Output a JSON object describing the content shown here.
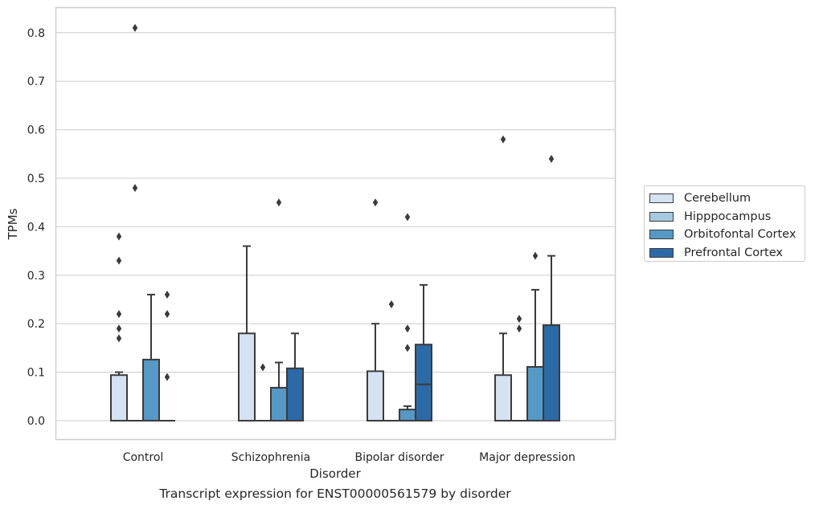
{
  "chart_data": {
    "type": "box",
    "title": "",
    "caption": "Transcript expression for ENST00000561579 by disorder",
    "xlabel": "Disorder",
    "ylabel": "TPMs",
    "ylim": [
      -0.04,
      0.855
    ],
    "yticks": [
      "0.0",
      "0.1",
      "0.2",
      "0.3",
      "0.4",
      "0.5",
      "0.6",
      "0.7",
      "0.8"
    ],
    "ytick_values": [
      0.0,
      0.1,
      0.2,
      0.3,
      0.4,
      0.5,
      0.6,
      0.7,
      0.8
    ],
    "grid": true,
    "legend_position": "right",
    "categories": [
      "Control",
      "Schizophrenia",
      "Bipolar disorder",
      "Major depression"
    ],
    "series": [
      {
        "name": "Cerebellum",
        "color": "#d4e2f1",
        "boxes": [
          {
            "q1": 0.0,
            "median": 0.0,
            "q3": 0.094,
            "whisker_low": 0.0,
            "whisker_high": 0.1,
            "outliers": [
              0.38,
              0.33,
              0.22,
              0.19,
              0.17
            ]
          },
          {
            "q1": 0.0,
            "median": 0.0,
            "q3": 0.18,
            "whisker_low": 0.0,
            "whisker_high": 0.36,
            "outliers": []
          },
          {
            "q1": 0.0,
            "median": 0.0,
            "q3": 0.102,
            "whisker_low": 0.0,
            "whisker_high": 0.2,
            "outliers": [
              0.45
            ]
          },
          {
            "q1": 0.0,
            "median": 0.0,
            "q3": 0.094,
            "whisker_low": 0.0,
            "whisker_high": 0.18,
            "outliers": [
              0.58
            ]
          }
        ]
      },
      {
        "name": "Hipppocampus",
        "color": "#a7c9e0",
        "boxes": [
          {
            "q1": 0.0,
            "median": 0.0,
            "q3": 0.0,
            "whisker_low": 0.0,
            "whisker_high": 0.0,
            "outliers": [
              0.81,
              0.48
            ]
          },
          {
            "q1": 0.0,
            "median": 0.0,
            "q3": 0.0,
            "whisker_low": 0.0,
            "whisker_high": 0.0,
            "outliers": [
              0.11
            ]
          },
          {
            "q1": 0.0,
            "median": 0.0,
            "q3": 0.0,
            "whisker_low": 0.0,
            "whisker_high": 0.0,
            "outliers": [
              0.24
            ]
          },
          {
            "q1": 0.0,
            "median": 0.0,
            "q3": 0.0,
            "whisker_low": 0.0,
            "whisker_high": 0.0,
            "outliers": [
              0.21,
              0.19
            ]
          }
        ]
      },
      {
        "name": "Orbitofontal Cortex",
        "color": "#5698c6",
        "boxes": [
          {
            "q1": 0.0,
            "median": 0.0,
            "q3": 0.126,
            "whisker_low": 0.0,
            "whisker_high": 0.26,
            "outliers": []
          },
          {
            "q1": 0.0,
            "median": 0.0,
            "q3": 0.068,
            "whisker_low": 0.0,
            "whisker_high": 0.12,
            "outliers": [
              0.45
            ]
          },
          {
            "q1": 0.0,
            "median": 0.0,
            "q3": 0.023,
            "whisker_low": 0.0,
            "whisker_high": 0.03,
            "outliers": [
              0.42,
              0.19,
              0.15
            ]
          },
          {
            "q1": 0.0,
            "median": 0.0,
            "q3": 0.111,
            "whisker_low": 0.0,
            "whisker_high": 0.27,
            "outliers": [
              0.34
            ]
          }
        ]
      },
      {
        "name": "Prefrontal Cortex",
        "color": "#2b6aa6",
        "boxes": [
          {
            "q1": 0.0,
            "median": 0.0,
            "q3": 0.0,
            "whisker_low": 0.0,
            "whisker_high": 0.0,
            "outliers": [
              0.26,
              0.22,
              0.09
            ]
          },
          {
            "q1": 0.0,
            "median": 0.0,
            "q3": 0.108,
            "whisker_low": 0.0,
            "whisker_high": 0.18,
            "outliers": []
          },
          {
            "q1": 0.0,
            "median": 0.075,
            "q3": 0.157,
            "whisker_low": 0.0,
            "whisker_high": 0.28,
            "outliers": []
          },
          {
            "q1": 0.0,
            "median": 0.0,
            "q3": 0.197,
            "whisker_low": 0.0,
            "whisker_high": 0.34,
            "outliers": [
              0.54
            ]
          }
        ]
      }
    ]
  }
}
